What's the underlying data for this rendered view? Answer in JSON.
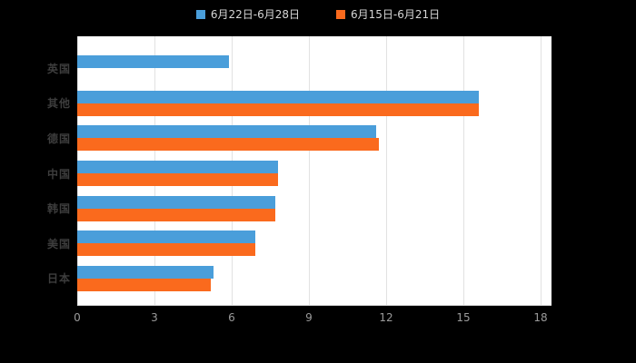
{
  "colors": {
    "background": "#000000",
    "plot_background": "#ffffff",
    "gridline": "#e2e2e2",
    "axis_line": "#d4d4d4",
    "x_tick_label": "#9a9a9a",
    "category_label": "#3d3d3d",
    "legend_text": "#d6d6d6",
    "series_blue": "#4a9eda",
    "series_orange": "#fa6a1d"
  },
  "chart_data": {
    "type": "bar",
    "orientation": "horizontal",
    "title": "",
    "xlabel": "",
    "ylabel": "",
    "categories": [
      "英国",
      "其他",
      "德国",
      "中国",
      "韩国",
      "美国",
      "日本"
    ],
    "series": [
      {
        "name": "6月22日-6月28日",
        "color": "#4a9eda",
        "values": [
          5.9,
          15.6,
          11.6,
          7.8,
          7.7,
          6.9,
          5.3
        ]
      },
      {
        "name": "6月15日-6月21日",
        "color": "#fa6a1d",
        "values": [
          0,
          15.6,
          11.7,
          7.8,
          7.7,
          6.9,
          5.2
        ]
      }
    ],
    "xlim": [
      0,
      18
    ],
    "x_ticks": [
      0,
      3,
      6,
      9,
      12,
      15,
      18
    ],
    "grid": true,
    "legend_position": "top-center"
  }
}
